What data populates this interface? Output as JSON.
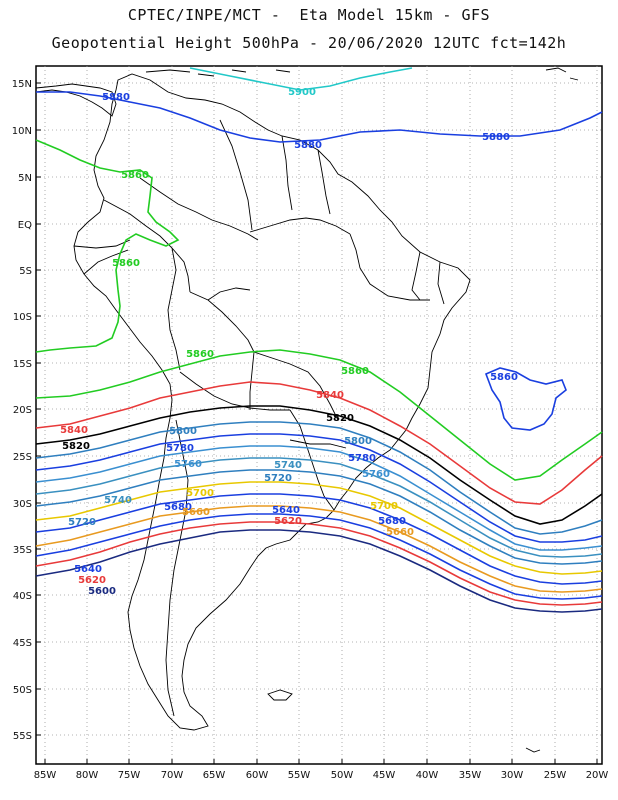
{
  "title_line1": "CPTEC/INPE/MCT -  Eta Model 15km - GFS",
  "title_line2": "Geopotential Height 500hPa - 20/06/2020 12UTC fct=142h",
  "lat_labels": [
    "15N",
    "10N",
    "5N",
    "EQ",
    "5S",
    "10S",
    "15S",
    "20S",
    "25S",
    "30S",
    "35S",
    "40S",
    "45S",
    "50S",
    "55S"
  ],
  "lon_labels": [
    "85W",
    "80W",
    "75W",
    "70W",
    "65W",
    "60W",
    "55W",
    "50W",
    "45W",
    "40W",
    "35W",
    "30W",
    "25W",
    "20W"
  ],
  "contour_labels": [
    {
      "text": "5900",
      "color": "#22c8c8"
    },
    {
      "text": "5880",
      "color": "#1a3fe0"
    },
    {
      "text": "5880",
      "color": "#1a3fe0"
    },
    {
      "text": "5860",
      "color": "#22cc22"
    },
    {
      "text": "5860",
      "color": "#22cc22"
    },
    {
      "text": "5860",
      "color": "#22cc22"
    },
    {
      "text": "5860",
      "color": "#22cc22"
    },
    {
      "text": "5860",
      "color": "#1a3fe0"
    },
    {
      "text": "5840",
      "color": "#e83a3a"
    },
    {
      "text": "5840",
      "color": "#e83a3a"
    },
    {
      "text": "5820",
      "color": "#000000"
    },
    {
      "text": "5820",
      "color": "#000000"
    },
    {
      "text": "5800",
      "color": "#2f7fbf"
    },
    {
      "text": "5800",
      "color": "#2f7fbf"
    },
    {
      "text": "5780",
      "color": "#1a3fe0"
    },
    {
      "text": "5780",
      "color": "#1a3fe0"
    },
    {
      "text": "5760",
      "color": "#3a8fd0"
    },
    {
      "text": "5760",
      "color": "#3a8fd0"
    },
    {
      "text": "5740",
      "color": "#3a90c0"
    },
    {
      "text": "5740",
      "color": "#3a90c0"
    },
    {
      "text": "5720",
      "color": "#2f7fbf"
    },
    {
      "text": "5720",
      "color": "#2f7fbf"
    },
    {
      "text": "5700",
      "color": "#e8c800"
    },
    {
      "text": "5700",
      "color": "#e8c800"
    },
    {
      "text": "5680",
      "color": "#1a3fe0"
    },
    {
      "text": "5680",
      "color": "#1a3fe0"
    },
    {
      "text": "5660",
      "color": "#e89a20"
    },
    {
      "text": "5660",
      "color": "#e89a20"
    },
    {
      "text": "5640",
      "color": "#1a3fe0"
    },
    {
      "text": "5640",
      "color": "#1a3fe0"
    },
    {
      "text": "5620",
      "color": "#e83a3a"
    },
    {
      "text": "5620",
      "color": "#e83a3a"
    },
    {
      "text": "5600",
      "color": "#1a2a80"
    }
  ]
}
